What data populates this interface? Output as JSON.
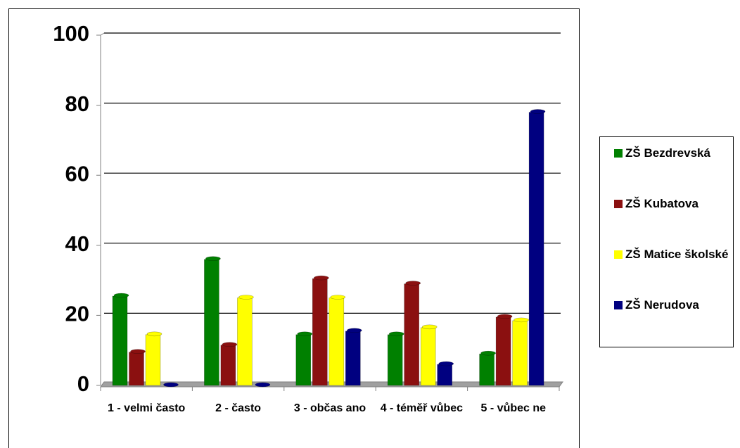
{
  "chart_data": {
    "type": "bar",
    "categories": [
      "1 - velmi často",
      "2 - často",
      "3 - občas ano",
      "4 - téměř vůbec",
      "5 - vůbec ne"
    ],
    "series": [
      {
        "name": "ZŠ Bezdrevská",
        "color": "#008000",
        "values": [
          25.5,
          36,
          14.5,
          14.5,
          9
        ]
      },
      {
        "name": "ZŠ Kubatova",
        "color": "#8b1010",
        "values": [
          9.5,
          11.5,
          30.5,
          29,
          19.5
        ]
      },
      {
        "name": "ZŠ Matice školské",
        "color": "#ffff00",
        "values": [
          14.5,
          25,
          25,
          16.5,
          18.5
        ]
      },
      {
        "name": "ZŠ Nerudova",
        "color": "#000080",
        "values": [
          0,
          0,
          15.5,
          6,
          78
        ]
      }
    ],
    "ylim": [
      0,
      100
    ],
    "yticks": [
      0,
      20,
      40,
      60,
      80,
      100
    ],
    "grid": true
  }
}
